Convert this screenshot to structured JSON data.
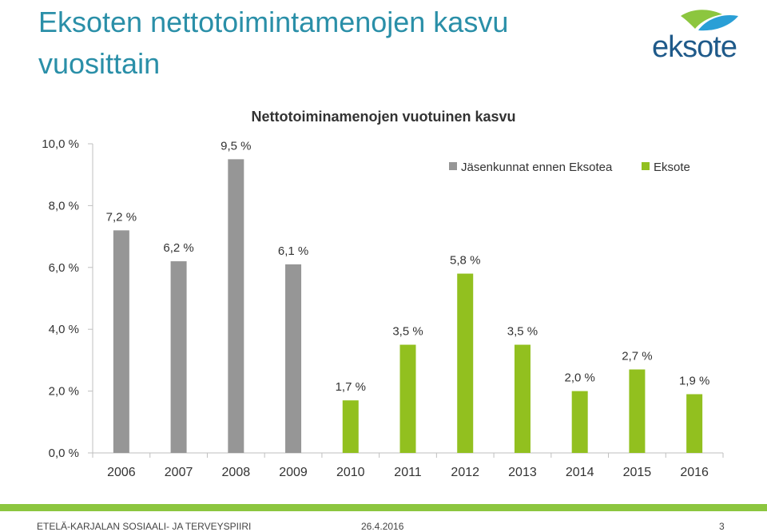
{
  "slide": {
    "title": "Eksoten nettotoimintamenojen kasvu vuosittain",
    "logo_text": "eksote"
  },
  "footer": {
    "org": "ETELÄ-KARJALAN SOSIAALI- JA TERVEYSPIIRI",
    "date": "26.4.2016",
    "page": "3"
  },
  "colors": {
    "grey_series": "#969696",
    "green_series": "#92c01f",
    "title": "#2a8fa8",
    "logo_blue": "#1f5a8a",
    "logo_green": "#8cc63f",
    "logo_lightblue": "#2a9fd6"
  },
  "chart_data": {
    "type": "bar",
    "title": "Nettotoiminamenojen vuotuinen kasvu",
    "categories": [
      "2006",
      "2007",
      "2008",
      "2009",
      "2010",
      "2011",
      "2012",
      "2013",
      "2014",
      "2015",
      "2016"
    ],
    "series": [
      {
        "name": "Jäsenkunnat ennen Eksotea",
        "color": "#969696",
        "values": [
          7.2,
          6.2,
          9.5,
          6.1,
          null,
          null,
          null,
          null,
          null,
          null,
          null
        ]
      },
      {
        "name": "Eksote",
        "color": "#92c01f",
        "values": [
          null,
          null,
          null,
          null,
          1.7,
          3.5,
          5.8,
          3.5,
          2.0,
          2.7,
          1.9
        ]
      }
    ],
    "data_labels": [
      "7,2 %",
      "6,2 %",
      "9,5 %",
      "6,1 %",
      "1,7 %",
      "3,5 %",
      "5,8 %",
      "3,5 %",
      "2,0 %",
      "2,7 %",
      "1,9 %"
    ],
    "yticks": [
      0,
      2,
      4,
      6,
      8,
      10
    ],
    "ytick_labels": [
      "0,0 %",
      "2,0 %",
      "4,0 %",
      "6,0 %",
      "8,0 %",
      "10,0 %"
    ],
    "ylim": [
      0,
      10
    ],
    "xlabel": "",
    "ylabel": "",
    "legend_position": "top-right",
    "grid": false
  }
}
